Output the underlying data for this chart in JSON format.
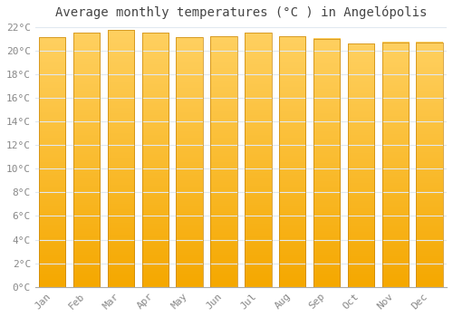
{
  "title": "Average monthly temperatures (°C ) in Angelópolis",
  "months": [
    "Jan",
    "Feb",
    "Mar",
    "Apr",
    "May",
    "Jun",
    "Jul",
    "Aug",
    "Sep",
    "Oct",
    "Nov",
    "Dec"
  ],
  "values": [
    21.1,
    21.5,
    21.7,
    21.5,
    21.1,
    21.2,
    21.5,
    21.2,
    21.0,
    20.6,
    20.7,
    20.7
  ],
  "bar_color_light": "#FFD060",
  "bar_color_dark": "#F5A800",
  "bar_edge_color": "#C8860A",
  "background_color": "#FFFFFF",
  "grid_color": "#E0E8F0",
  "ylim": [
    0,
    22
  ],
  "ytick_step": 2,
  "title_fontsize": 10,
  "tick_fontsize": 8,
  "bar_width": 0.78
}
